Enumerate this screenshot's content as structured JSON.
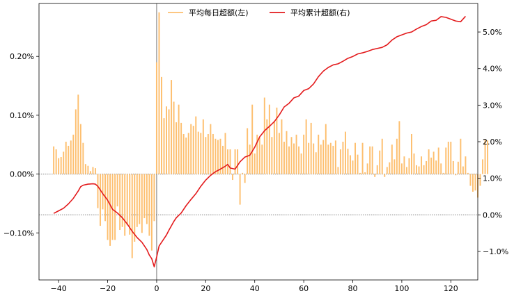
{
  "chart_data": {
    "type": "bar+line",
    "title": "",
    "xlabel": "",
    "ylabel_left": "",
    "ylabel_right": "",
    "xlim": [
      -48,
      131
    ],
    "ylim_left": [
      -0.0018,
      0.0029
    ],
    "ylim_right": [
      -0.0178,
      0.0578
    ],
    "x_ticks": [
      -40,
      -20,
      0,
      20,
      40,
      60,
      80,
      100,
      120
    ],
    "x_tick_labels": [
      "−40",
      "−20",
      "0",
      "20",
      "40",
      "60",
      "80",
      "100",
      "120"
    ],
    "y_left_ticks": [
      -0.001,
      0.0,
      0.001,
      0.002
    ],
    "y_left_tick_labels": [
      "−0.10%",
      "0.00%",
      "0.10%",
      "0.20%"
    ],
    "y_right_ticks": [
      -0.01,
      0.0,
      0.01,
      0.02,
      0.03,
      0.04,
      0.05
    ],
    "y_right_tick_labels": [
      "−1.0%",
      "0.0%",
      "1.0%",
      "2.0%",
      "3.0%",
      "4.0%",
      "5.0%"
    ],
    "reference_lines": [
      {
        "axis": "y_left",
        "value": 0.0
      },
      {
        "axis": "y_right",
        "value": 0.0
      },
      {
        "axis": "x",
        "value": 0
      }
    ],
    "legend_position": "top-center",
    "legend": [
      {
        "label": "平均每日超额(左)",
        "color": "#fdbf6f",
        "kind": "bar"
      },
      {
        "label": "平均累计超额(右)",
        "color": "#e31a1c",
        "kind": "line"
      }
    ],
    "series": [
      {
        "name": "平均每日超额(左)",
        "axis": "left",
        "type": "bar",
        "color": "#fdbf6f",
        "x_start": -42,
        "values": [
          0.00047,
          0.00042,
          0.00027,
          0.00029,
          0.00038,
          0.00055,
          0.00048,
          0.00057,
          0.00067,
          0.0011,
          0.00135,
          0.00085,
          0.00053,
          0.00017,
          0.00014,
          5e-05,
          0.00012,
          0.0001,
          -0.00058,
          -0.00088,
          -0.0006,
          -0.0008,
          -0.00112,
          -0.00122,
          -0.00112,
          -0.00112,
          -0.00055,
          -0.00095,
          -0.0009,
          -0.00105,
          -0.00087,
          -0.00103,
          -0.00143,
          -0.00115,
          -0.0009,
          -0.00085,
          -0.001,
          -0.00075,
          -0.00085,
          -0.00105,
          -0.0013,
          -0.0008,
          0.0019,
          0.00275,
          0.00165,
          0.00095,
          0.00115,
          0.0011,
          0.0016,
          0.00123,
          0.00088,
          0.00118,
          0.00087,
          0.00068,
          0.00062,
          0.0007,
          0.00085,
          0.00082,
          0.00098,
          0.00072,
          0.0007,
          0.00093,
          0.00063,
          0.00068,
          0.00085,
          0.00068,
          0.0006,
          0.00058,
          0.0006,
          0.00048,
          0.0007,
          0.00042,
          0.00042,
          -0.0001,
          0.00042,
          0.00042,
          -0.00052,
          2e-05,
          -0.00015,
          0.00078,
          0.0005,
          0.00118,
          0.00035,
          0.00067,
          0.00062,
          0.0005,
          0.0013,
          0.00093,
          0.00118,
          0.00063,
          0.0009,
          0.00113,
          0.0007,
          0.00093,
          0.00055,
          0.00073,
          0.00047,
          0.00063,
          0.00052,
          0.00067,
          0.00047,
          0.00035,
          0.00067,
          0.00093,
          0.00053,
          0.00087,
          0.00052,
          0.00037,
          0.00067,
          0.0005,
          0.00058,
          0.00085,
          0.0005,
          0.00053,
          0.00048,
          0.00057,
          0.00012,
          0.00042,
          0.00055,
          0.00072,
          0.00043,
          0.00032,
          0.00023,
          0.00053,
          0.00033,
          2e-05,
          0.00053,
          3e-05,
          0.00018,
          0.00047,
          0.00047,
          -5e-05,
          0.00015,
          0.0004,
          0.0006,
          -5e-05,
          0.00012,
          0.0002,
          0.0005,
          0.00025,
          0.0006,
          0.0009,
          0.00018,
          0.0003,
          0.00012,
          0.00027,
          0.00068,
          0.00035,
          0.00015,
          0.00013,
          0.0003,
          0.00015,
          0.00022,
          0.00042,
          0.00028,
          0.00038,
          0.00023,
          0.00045,
          0.00018,
          2e-05,
          0.00045,
          0.00055,
          0.00055,
          0.00022,
          -2e-05,
          0.00021,
          0.0006,
          0.00013,
          0.0003,
          2e-05,
          -0.0002,
          -0.0003,
          -0.00028,
          -0.0004,
          -0.0002,
          0.00025,
          0.00058,
          0.00057
        ]
      },
      {
        "name": "平均累计超额(右)",
        "axis": "right",
        "type": "line",
        "color": "#e31a1c",
        "x": [
          -42,
          -40,
          -38,
          -36,
          -34,
          -32,
          -31,
          -30,
          -28,
          -26,
          -25,
          -24,
          -23,
          -22,
          -20,
          -18,
          -16,
          -14,
          -12,
          -10,
          -8,
          -6,
          -4,
          -3,
          -2,
          -1,
          0,
          1,
          2,
          3,
          4,
          5,
          6,
          7,
          8,
          10,
          12,
          14,
          16,
          18,
          20,
          22,
          24,
          26,
          28,
          29,
          30,
          32,
          34,
          36,
          38,
          40,
          42,
          44,
          46,
          48,
          50,
          52,
          54,
          56,
          58,
          60,
          62,
          64,
          66,
          68,
          70,
          72,
          74,
          76,
          78,
          80,
          82,
          84,
          86,
          88,
          90,
          92,
          94,
          96,
          98,
          100,
          102,
          104,
          106,
          108,
          110,
          112,
          114,
          116,
          118,
          120,
          122,
          124,
          126
        ],
        "values": [
          0.0004,
          0.0011,
          0.0018,
          0.003,
          0.0045,
          0.0065,
          0.0077,
          0.0081,
          0.0084,
          0.0085,
          0.0084,
          0.0078,
          0.0068,
          0.0058,
          0.004,
          0.0015,
          0.0005,
          -0.0008,
          -0.0025,
          -0.0045,
          -0.0062,
          -0.0075,
          -0.0095,
          -0.011,
          -0.012,
          -0.0142,
          -0.0115,
          -0.0085,
          -0.0075,
          -0.0065,
          -0.0055,
          -0.0042,
          -0.003,
          -0.0018,
          -0.0008,
          0.0005,
          0.0025,
          0.0042,
          0.0058,
          0.0078,
          0.0095,
          0.0108,
          0.0118,
          0.0125,
          0.0133,
          0.0138,
          0.0128,
          0.0125,
          0.0145,
          0.0158,
          0.0163,
          0.0185,
          0.0213,
          0.023,
          0.0242,
          0.0255,
          0.0273,
          0.0295,
          0.0305,
          0.032,
          0.0325,
          0.034,
          0.0345,
          0.0358,
          0.0378,
          0.0393,
          0.0403,
          0.041,
          0.0413,
          0.042,
          0.0428,
          0.0433,
          0.044,
          0.0443,
          0.0447,
          0.0452,
          0.0455,
          0.0458,
          0.0465,
          0.0478,
          0.0487,
          0.0492,
          0.0497,
          0.05,
          0.0508,
          0.0515,
          0.052,
          0.053,
          0.0532,
          0.0542,
          0.054,
          0.0535,
          0.053,
          0.0528,
          0.0543
        ]
      }
    ]
  }
}
